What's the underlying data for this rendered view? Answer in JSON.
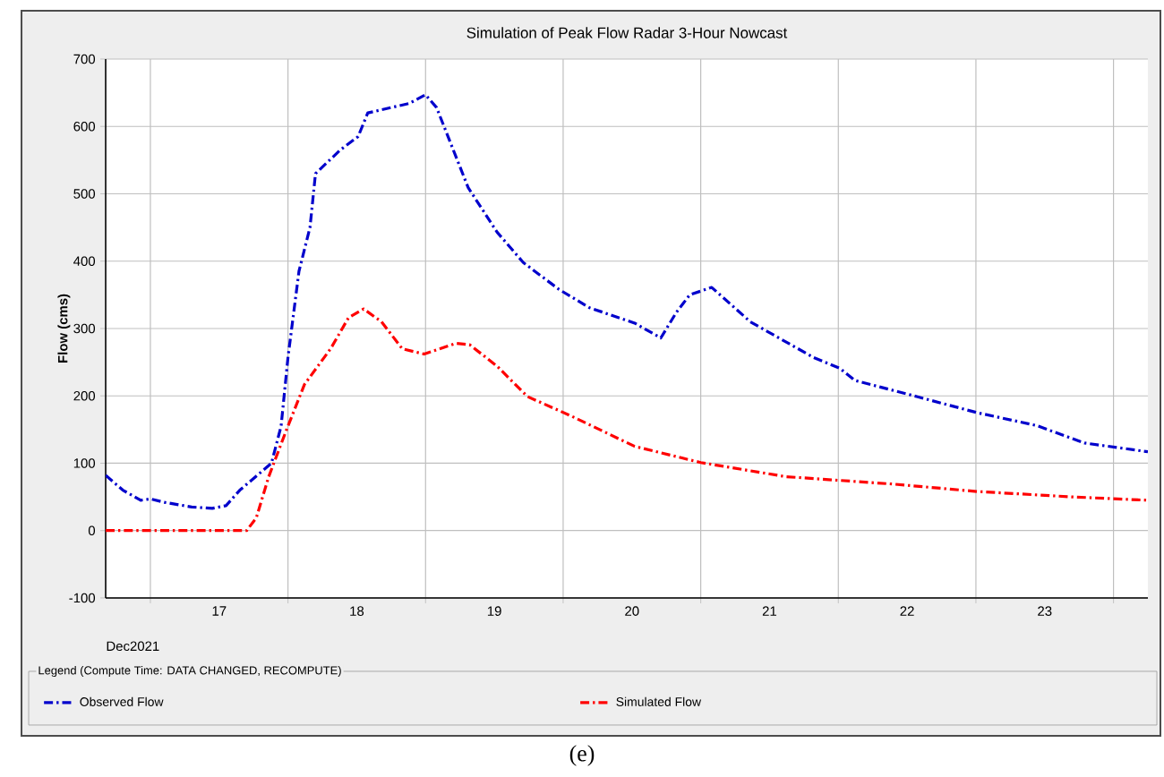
{
  "chart_data": {
    "type": "line",
    "title": "Simulation of Peak Flow Radar 3-Hour Nowcast",
    "ylabel": "Flow (cms)",
    "legend_title": "Legend (Compute Time: DATA CHANGED, RECOMPUTE)",
    "annotations": [
      "Dec2021",
      "(e)"
    ],
    "xlim": [
      16.675,
      24.25
    ],
    "xticks": [
      {
        "value": 17,
        "label": null
      },
      {
        "value": 18,
        "label": null
      },
      {
        "value": 19,
        "label": null
      },
      {
        "value": 20,
        "label": null
      },
      {
        "value": 21,
        "label": null
      },
      {
        "value": 22,
        "label": null
      },
      {
        "value": 23,
        "label": null
      },
      {
        "value": 24,
        "label": null
      },
      {
        "value": 17.5,
        "label": "17"
      },
      {
        "value": 18.5,
        "label": "18"
      },
      {
        "value": 19.5,
        "label": "19"
      },
      {
        "value": 20.5,
        "label": "20"
      },
      {
        "value": 21.5,
        "label": "21"
      },
      {
        "value": 22.5,
        "label": "22"
      },
      {
        "value": 23.5,
        "label": "23"
      }
    ],
    "ylim": [
      -100,
      700
    ],
    "yticks": [
      -100,
      0,
      100,
      200,
      300,
      400,
      500,
      600,
      700
    ],
    "grid": true,
    "legend": "bottom",
    "line_style": "dashdot",
    "marker": "none",
    "series": [
      {
        "name": "Observed Flow",
        "color": "#0000cc",
        "x": [
          16.675,
          16.8,
          16.93,
          17.0,
          17.1,
          17.3,
          17.45,
          17.55,
          17.65,
          17.88,
          17.95,
          18.0,
          18.08,
          18.16,
          18.2,
          18.38,
          18.51,
          18.58,
          18.75,
          18.88,
          19.0,
          19.08,
          19.31,
          19.52,
          19.71,
          19.97,
          20.19,
          20.52,
          20.71,
          20.82,
          20.92,
          21.08,
          21.36,
          21.82,
          22.01,
          22.12,
          22.57,
          23.01,
          23.44,
          23.79,
          24.25
        ],
        "values": [
          82,
          60,
          45,
          47,
          42,
          35,
          33,
          37,
          60,
          100,
          155,
          257,
          385,
          450,
          530,
          565,
          585,
          620,
          628,
          634,
          647,
          628,
          509,
          443,
          398,
          358,
          331,
          308,
          286,
          323,
          350,
          361,
          310,
          257,
          241,
          223,
          199,
          175,
          156,
          130,
          117
        ]
      },
      {
        "name": "Simulated Flow",
        "color": "#ff0000",
        "x": [
          16.675,
          17.7,
          17.77,
          17.86,
          17.99,
          18.12,
          18.31,
          18.44,
          18.55,
          18.68,
          18.83,
          18.99,
          19.22,
          19.32,
          19.52,
          19.74,
          20.06,
          20.52,
          21.0,
          21.62,
          22.4,
          23.01,
          23.7,
          24.25
        ],
        "values": [
          0,
          0,
          19,
          80,
          150,
          217,
          270,
          316,
          329,
          310,
          270,
          262,
          278,
          276,
          244,
          199,
          170,
          125,
          101,
          80,
          69,
          58,
          50,
          45
        ]
      }
    ]
  }
}
